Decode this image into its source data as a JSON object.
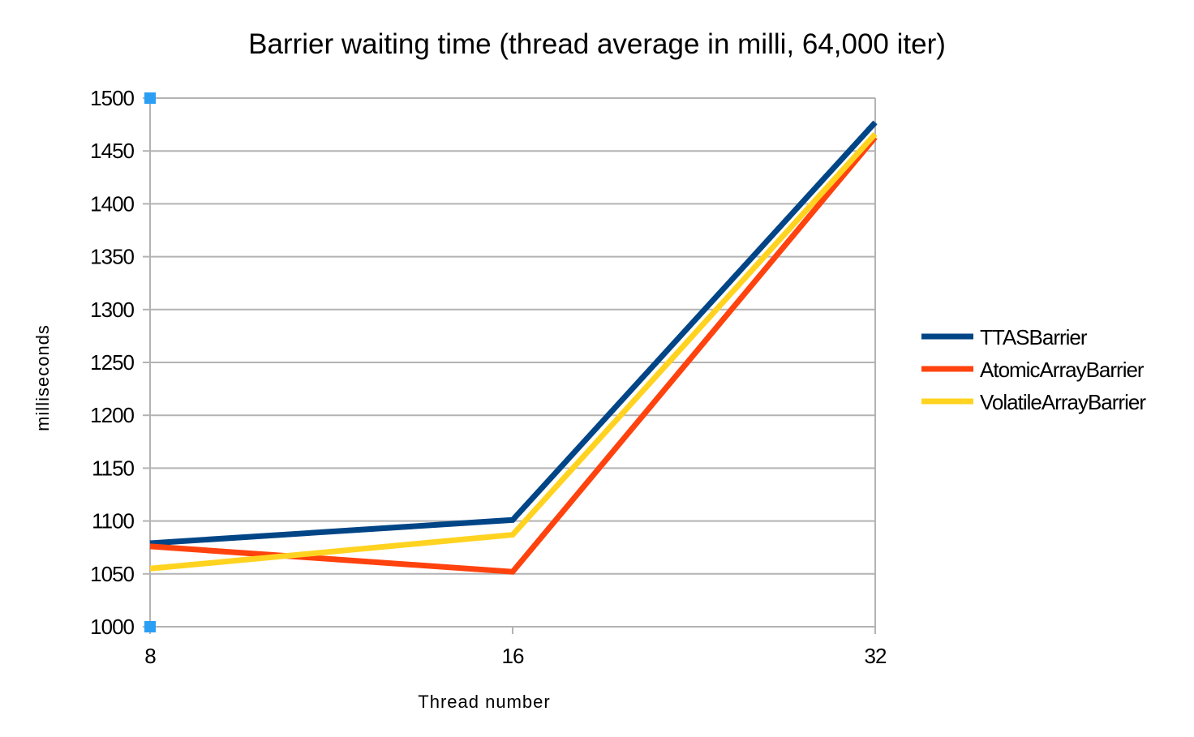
{
  "chart_data": {
    "type": "line",
    "title": "Barrier waiting time (thread average in milli, 64,000 iter)",
    "xlabel": "Thread number",
    "ylabel": "milliseconds",
    "categories": [
      "8",
      "16",
      "32"
    ],
    "ylim": [
      1000,
      1500
    ],
    "yticks": [
      1000,
      1050,
      1100,
      1150,
      1200,
      1250,
      1300,
      1350,
      1400,
      1450,
      1500
    ],
    "grid": true,
    "legend_position": "right",
    "series": [
      {
        "name": "TTASBarrier",
        "values": [
          1079,
          1101,
          1477
        ],
        "color": "#004586"
      },
      {
        "name": "AtomicArrayBarrier",
        "values": [
          1076,
          1052,
          1463
        ],
        "color": "#ff420e"
      },
      {
        "name": "VolatileArrayBarrier",
        "values": [
          1055,
          1087,
          1466
        ],
        "color": "#ffd320"
      }
    ],
    "axis_marker_color": "#2a9ff4"
  }
}
